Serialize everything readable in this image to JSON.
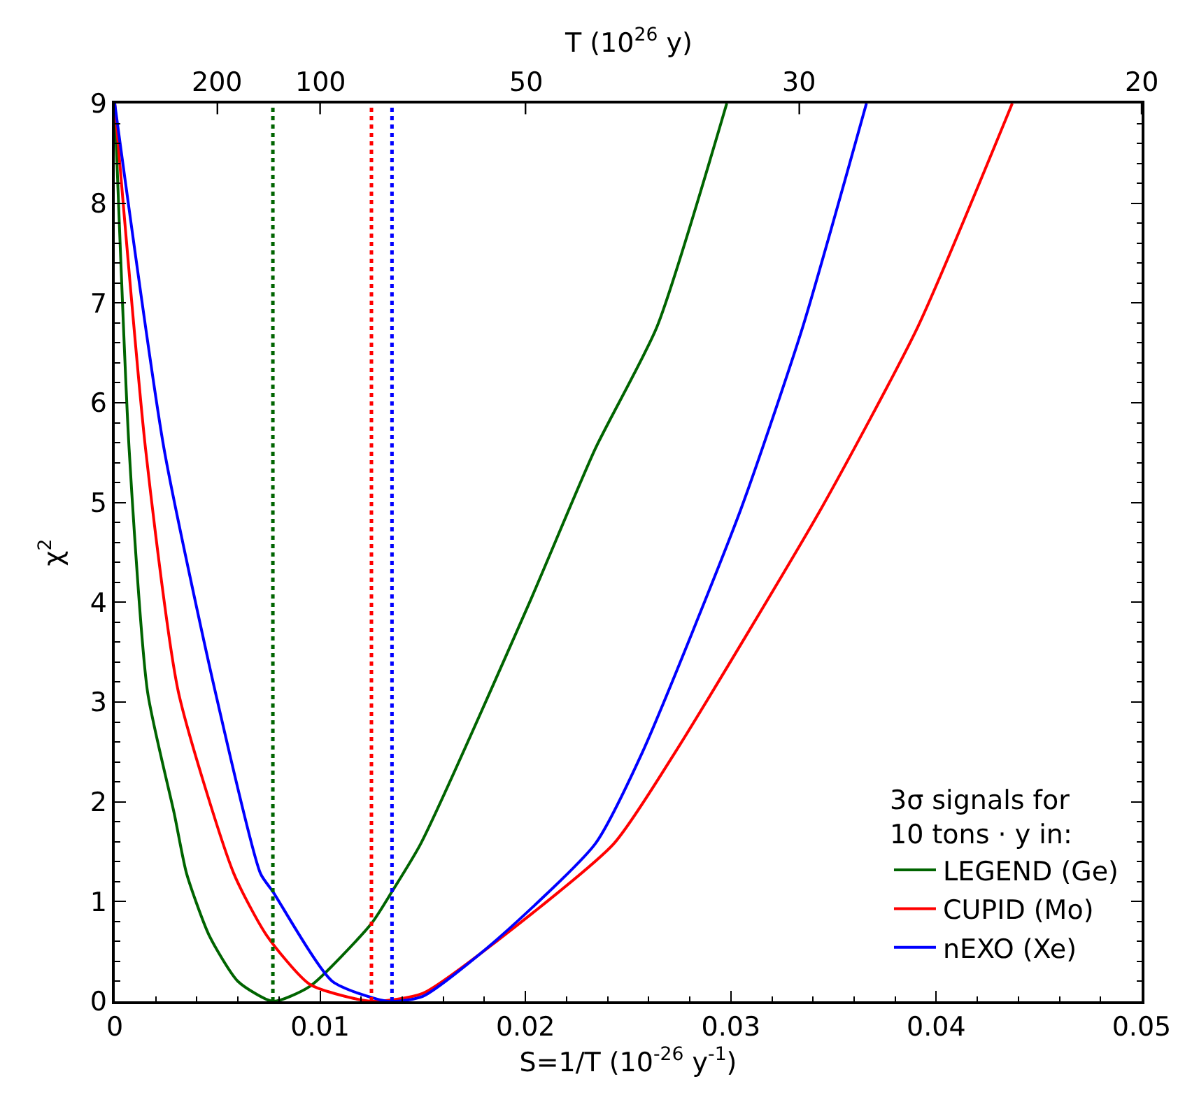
{
  "chart_data": {
    "type": "line",
    "xlabel": "S=1/T (10$^{-26}$ y$^{-1}$)",
    "annotations": [
      "T (10$^{26}$ y)",
      "200",
      "100",
      "50",
      "30",
      "20"
    ],
    "ylabel": "χ$^{2}$",
    "legend_title": "3σ signals for\n10 tons · y in:",
    "legend": "bottom right",
    "grid": false,
    "marker": "none",
    "line_style": "solid",
    "xlim": [
      0,
      0.05
    ],
    "xticks": [
      {
        "value": 0,
        "label": "0"
      },
      0.01,
      0.02,
      0.03,
      0.04,
      0.05
    ],
    "ylim": [
      0,
      9
    ],
    "yticks": [
      0,
      1,
      2,
      3,
      4,
      5,
      6,
      7,
      8,
      9
    ],
    "series": [
      {
        "name": "LEGEND (Ge)",
        "color": "#006400",
        "x": [
          0,
          0.0007,
          0.0016,
          0.0029,
          0.0035,
          0.0046,
          0.006,
          0.0077,
          0.0095,
          0.0125,
          0.0135,
          0.0149,
          0.0202,
          0.0234,
          0.0264,
          0.0298
        ],
        "values": [
          9,
          5.54,
          3.1,
          1.88,
          1.28,
          0.66,
          0.2,
          0,
          0.15,
          0.78,
          1.1,
          1.58,
          4.0,
          5.54,
          6.76,
          9
        ]
      },
      {
        "name": "CUPID (Mo)",
        "color": "#ff0000",
        "x": [
          0,
          0.0015,
          0.0031,
          0.0058,
          0.0074,
          0.0095,
          0.0125,
          0.015,
          0.0187,
          0.0243,
          0.0273,
          0.0344,
          0.0391,
          0.0437
        ],
        "values": [
          9,
          5.54,
          3.1,
          1.28,
          0.66,
          0.17,
          0,
          0.08,
          0.62,
          1.58,
          2.5,
          4.94,
          6.76,
          9
        ]
      },
      {
        "name": "nEXO (Xe)",
        "color": "#0000ff",
        "x": [
          0,
          0.0024,
          0.0049,
          0.0071,
          0.0077,
          0.0106,
          0.0133,
          0.015,
          0.0185,
          0.0234,
          0.0257,
          0.0305,
          0.0335,
          0.0366
        ],
        "values": [
          9,
          5.54,
          3.1,
          1.28,
          1.1,
          0.2,
          0,
          0.05,
          0.6,
          1.58,
          2.5,
          4.94,
          6.76,
          9
        ]
      }
    ],
    "ref_lines": [
      {
        "axis": "x",
        "value": 0.0077,
        "color": "#006400",
        "line_style": "dotted"
      },
      {
        "axis": "x",
        "value": 0.0125,
        "color": "#ff0000",
        "line_style": "dotted"
      },
      {
        "axis": "x",
        "value": 0.0135,
        "color": "#0000ff",
        "line_style": "dotted"
      }
    ]
  }
}
